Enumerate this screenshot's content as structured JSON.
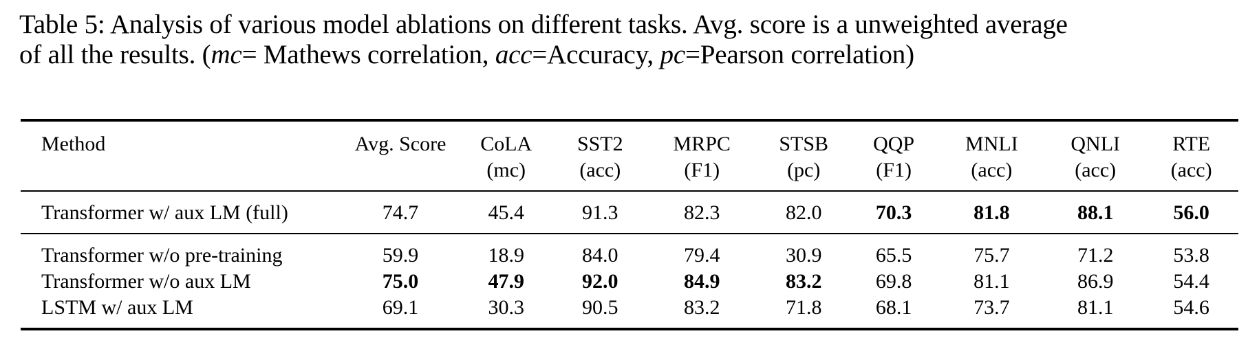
{
  "caption": {
    "line1": "Table 5: Analysis of various model ablations on different tasks. Avg. score is a unweighted average",
    "line2_prefix": "of all the results. (",
    "mc_abbr": "mc",
    "mc_def": "= Mathews correlation, ",
    "acc_abbr": "acc",
    "acc_def": "=Accuracy, ",
    "pc_abbr": "pc",
    "pc_def": "=Pearson correlation)"
  },
  "table": {
    "headers": [
      {
        "name": "Method",
        "sub": ""
      },
      {
        "name": "Avg. Score",
        "sub": ""
      },
      {
        "name": "CoLA",
        "sub": "(mc)"
      },
      {
        "name": "SST2",
        "sub": "(acc)"
      },
      {
        "name": "MRPC",
        "sub": "(F1)"
      },
      {
        "name": "STSB",
        "sub": "(pc)"
      },
      {
        "name": "QQP",
        "sub": "(F1)"
      },
      {
        "name": "MNLI",
        "sub": "(acc)"
      },
      {
        "name": "QNLI",
        "sub": "(acc)"
      },
      {
        "name": "RTE",
        "sub": "(acc)"
      }
    ],
    "rows": [
      {
        "method": "Transformer w/ aux LM (full)",
        "values": [
          "74.7",
          "45.4",
          "91.3",
          "82.3",
          "82.0",
          "70.3",
          "81.8",
          "88.1",
          "56.0"
        ],
        "bold": [
          false,
          false,
          false,
          false,
          false,
          true,
          true,
          true,
          true
        ]
      },
      {
        "method": "Transformer w/o pre-training",
        "values": [
          "59.9",
          "18.9",
          "84.0",
          "79.4",
          "30.9",
          "65.5",
          "75.7",
          "71.2",
          "53.8"
        ],
        "bold": [
          false,
          false,
          false,
          false,
          false,
          false,
          false,
          false,
          false
        ]
      },
      {
        "method": "Transformer w/o aux LM",
        "values": [
          "75.0",
          "47.9",
          "92.0",
          "84.9",
          "83.2",
          "69.8",
          "81.1",
          "86.9",
          "54.4"
        ],
        "bold": [
          true,
          true,
          true,
          true,
          true,
          false,
          false,
          false,
          false
        ]
      },
      {
        "method": "LSTM w/ aux LM",
        "values": [
          "69.1",
          "30.3",
          "90.5",
          "83.2",
          "71.8",
          "68.1",
          "73.7",
          "81.1",
          "54.6"
        ],
        "bold": [
          false,
          false,
          false,
          false,
          false,
          false,
          false,
          false,
          false
        ]
      }
    ]
  }
}
